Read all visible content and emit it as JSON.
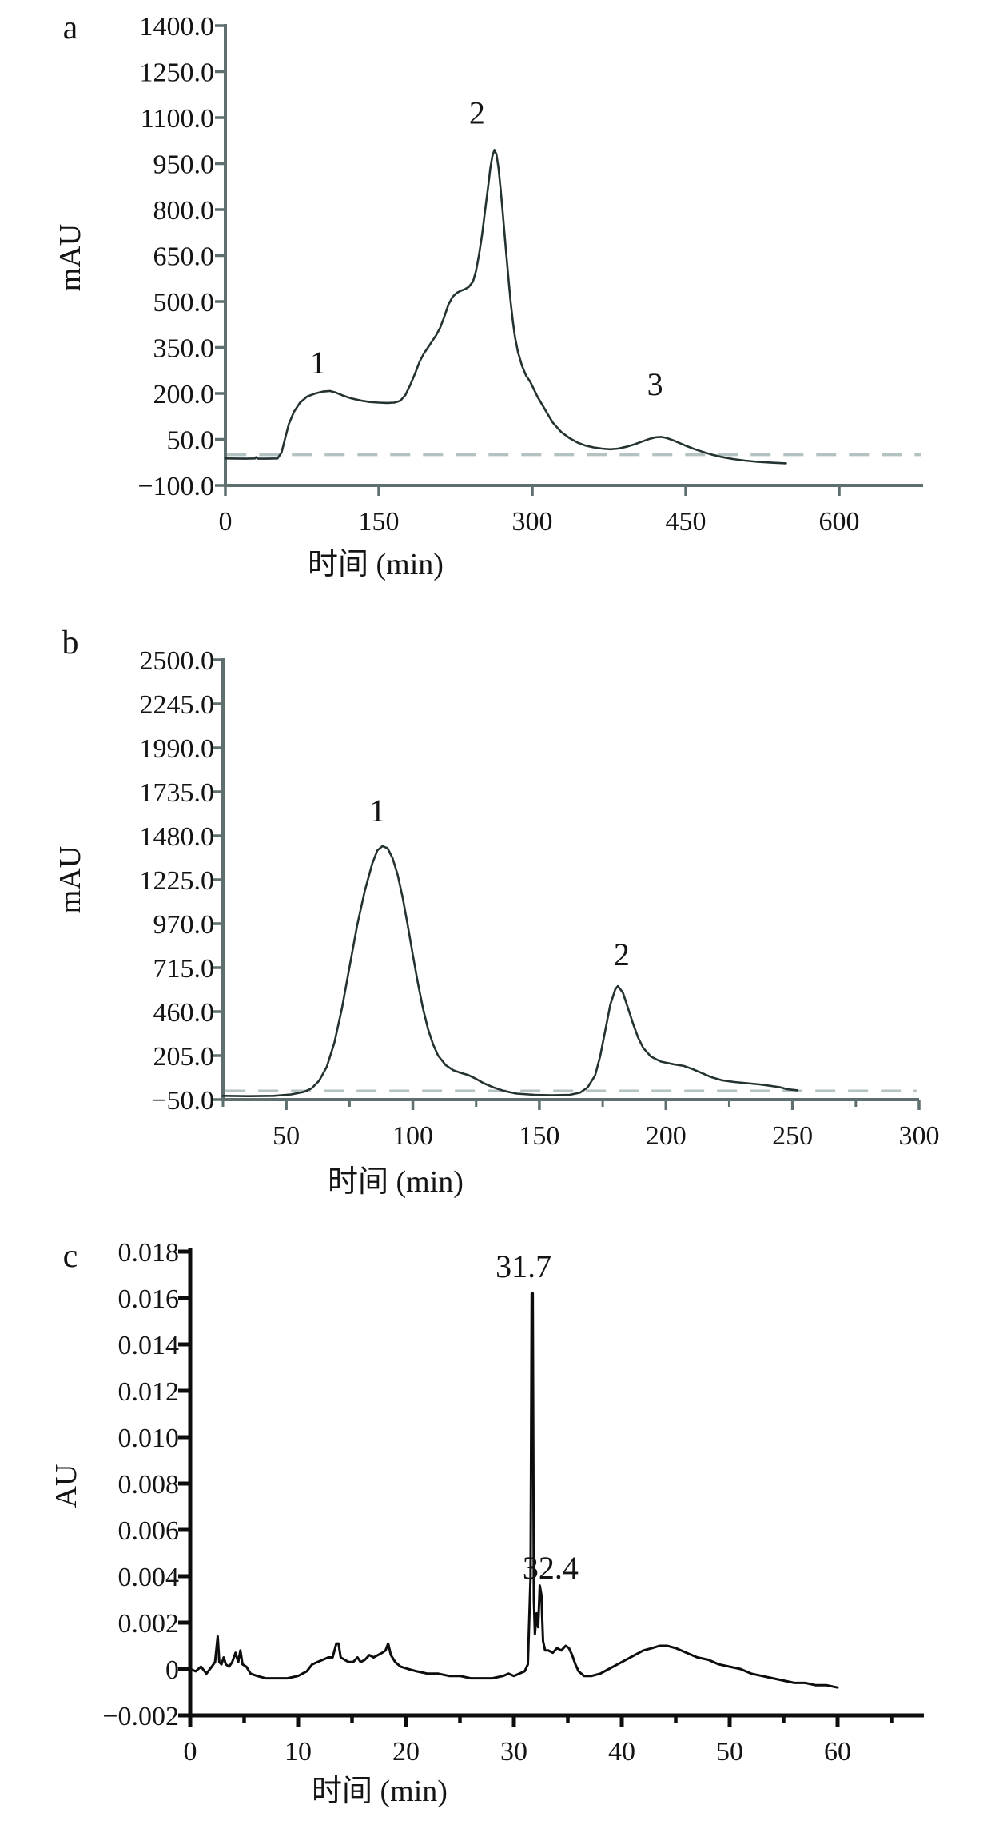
{
  "figure": {
    "title": "Chromatography figure with three panels",
    "background": "#ffffff"
  },
  "chart_data": [
    {
      "id": "a",
      "type": "line",
      "panel_label": "a",
      "ylabel": "mAU",
      "xlabel": "时间 (min)",
      "x_range": [
        0,
        682
      ],
      "y_range": [
        -100,
        1400
      ],
      "x_ticks": [
        {
          "v": 0,
          "label": "0"
        },
        {
          "v": 150,
          "label": "150"
        },
        {
          "v": 300,
          "label": "300"
        },
        {
          "v": 450,
          "label": "450"
        },
        {
          "v": 600,
          "label": "600"
        }
      ],
      "x_minor_ticks": [],
      "y_ticks": [
        {
          "v": 1400,
          "label": "1400.0"
        },
        {
          "v": 1250,
          "label": "1250.0"
        },
        {
          "v": 1100,
          "label": "1100.0"
        },
        {
          "v": 950,
          "label": "950.0"
        },
        {
          "v": 800,
          "label": "800.0"
        },
        {
          "v": 650,
          "label": "650.0"
        },
        {
          "v": 500,
          "label": "500.0"
        },
        {
          "v": 350,
          "label": "350.0"
        },
        {
          "v": 200,
          "label": "200.0"
        },
        {
          "v": 50,
          "label": "50.0"
        },
        {
          "v": -100,
          "label": "−100.0"
        }
      ],
      "baseline_dashed": {
        "y": 0,
        "x1": 1,
        "x2": 680
      },
      "series": [
        [
          0,
          -12
        ],
        [
          20,
          -13
        ],
        [
          29,
          -12
        ],
        [
          30,
          -8
        ],
        [
          32,
          -13
        ],
        [
          40,
          -13
        ],
        [
          51,
          -12
        ],
        [
          55,
          8
        ],
        [
          58,
          48
        ],
        [
          62,
          100
        ],
        [
          67,
          140
        ],
        [
          73,
          170
        ],
        [
          80,
          190
        ],
        [
          88,
          200
        ],
        [
          95,
          206
        ],
        [
          102,
          208
        ],
        [
          108,
          203
        ],
        [
          115,
          193
        ],
        [
          123,
          184
        ],
        [
          132,
          177
        ],
        [
          141,
          172
        ],
        [
          150,
          170
        ],
        [
          158,
          169
        ],
        [
          165,
          170
        ],
        [
          171,
          176
        ],
        [
          176,
          195
        ],
        [
          181,
          230
        ],
        [
          186,
          270
        ],
        [
          190,
          305
        ],
        [
          194,
          330
        ],
        [
          198,
          350
        ],
        [
          202,
          370
        ],
        [
          206,
          390
        ],
        [
          210,
          415
        ],
        [
          214,
          450
        ],
        [
          218,
          490
        ],
        [
          222,
          515
        ],
        [
          226,
          528
        ],
        [
          230,
          535
        ],
        [
          234,
          540
        ],
        [
          238,
          548
        ],
        [
          242,
          565
        ],
        [
          245,
          600
        ],
        [
          248,
          655
        ],
        [
          251,
          720
        ],
        [
          254,
          800
        ],
        [
          257,
          880
        ],
        [
          259,
          935
        ],
        [
          261,
          975
        ],
        [
          263,
          995
        ],
        [
          265,
          980
        ],
        [
          267,
          935
        ],
        [
          269,
          870
        ],
        [
          271,
          795
        ],
        [
          273,
          715
        ],
        [
          275,
          640
        ],
        [
          277,
          565
        ],
        [
          279,
          495
        ],
        [
          281,
          435
        ],
        [
          283,
          385
        ],
        [
          286,
          335
        ],
        [
          290,
          290
        ],
        [
          294,
          258
        ],
        [
          298,
          238
        ],
        [
          305,
          190
        ],
        [
          312,
          150
        ],
        [
          320,
          105
        ],
        [
          328,
          75
        ],
        [
          336,
          55
        ],
        [
          344,
          40
        ],
        [
          352,
          30
        ],
        [
          360,
          24
        ],
        [
          368,
          20
        ],
        [
          376,
          18
        ],
        [
          384,
          20
        ],
        [
          392,
          26
        ],
        [
          400,
          34
        ],
        [
          408,
          44
        ],
        [
          415,
          52
        ],
        [
          421,
          57
        ],
        [
          426,
          58
        ],
        [
          431,
          55
        ],
        [
          437,
          48
        ],
        [
          444,
          38
        ],
        [
          451,
          28
        ],
        [
          459,
          18
        ],
        [
          467,
          9
        ],
        [
          476,
          0
        ],
        [
          486,
          -8
        ],
        [
          496,
          -14
        ],
        [
          508,
          -19
        ],
        [
          520,
          -23
        ],
        [
          534,
          -26
        ],
        [
          548,
          -28
        ]
      ],
      "annotations": [
        {
          "text": "1",
          "x": 90.6,
          "y": 265
        },
        {
          "text": "2",
          "x": 246,
          "y": 1080
        },
        {
          "text": "3",
          "x": 420,
          "y": 195
        }
      ],
      "colors": {
        "axis": "#5f6f6f",
        "curve": "#243232",
        "dash": "#b5c2c2",
        "text": "#141414"
      }
    },
    {
      "id": "b",
      "type": "line",
      "panel_label": "b",
      "ylabel": "mAU",
      "xlabel": "时间 (min)",
      "x_range": [
        25,
        300
      ],
      "y_range": [
        -50,
        2500
      ],
      "x_ticks": [
        {
          "v": 50,
          "label": "50"
        },
        {
          "v": 100,
          "label": "100"
        },
        {
          "v": 150,
          "label": "150"
        },
        {
          "v": 200,
          "label": "200"
        },
        {
          "v": 250,
          "label": "250"
        },
        {
          "v": 300,
          "label": "300"
        }
      ],
      "x_minor_ticks": [
        25,
        75,
        125,
        175,
        225,
        275
      ],
      "y_ticks": [
        {
          "v": 2500,
          "label": "2500.0"
        },
        {
          "v": 2245,
          "label": "2245.0"
        },
        {
          "v": 1990,
          "label": "1990.0"
        },
        {
          "v": 1735,
          "label": "1735.0"
        },
        {
          "v": 1480,
          "label": "1480.0"
        },
        {
          "v": 1225,
          "label": "1225.0"
        },
        {
          "v": 970,
          "label": "970.0"
        },
        {
          "v": 715,
          "label": "715.0"
        },
        {
          "v": 460,
          "label": "460.0"
        },
        {
          "v": 205,
          "label": "205.0"
        },
        {
          "v": -50,
          "label": "−50.0"
        }
      ],
      "baseline_dashed": {
        "y": 0,
        "x1": 26,
        "x2": 299
      },
      "series": [
        [
          25,
          -28
        ],
        [
          35,
          -30
        ],
        [
          45,
          -28
        ],
        [
          52,
          -20
        ],
        [
          57,
          -5
        ],
        [
          60,
          15
        ],
        [
          63,
          60
        ],
        [
          66,
          140
        ],
        [
          69,
          280
        ],
        [
          72,
          480
        ],
        [
          75,
          720
        ],
        [
          78,
          960
        ],
        [
          81,
          1160
        ],
        [
          84,
          1320
        ],
        [
          86,
          1395
        ],
        [
          88,
          1420
        ],
        [
          90,
          1408
        ],
        [
          92,
          1350
        ],
        [
          94,
          1255
        ],
        [
          96,
          1120
        ],
        [
          98,
          960
        ],
        [
          100,
          790
        ],
        [
          102,
          625
        ],
        [
          104,
          480
        ],
        [
          106,
          360
        ],
        [
          108,
          270
        ],
        [
          110,
          205
        ],
        [
          113,
          150
        ],
        [
          116,
          120
        ],
        [
          119,
          105
        ],
        [
          122,
          92
        ],
        [
          125,
          70
        ],
        [
          128,
          45
        ],
        [
          132,
          20
        ],
        [
          136,
          0
        ],
        [
          141,
          -15
        ],
        [
          148,
          -22
        ],
        [
          155,
          -25
        ],
        [
          162,
          -22
        ],
        [
          166,
          -10
        ],
        [
          169,
          20
        ],
        [
          172,
          90
        ],
        [
          174,
          200
        ],
        [
          176,
          350
        ],
        [
          178,
          500
        ],
        [
          180,
          590
        ],
        [
          181,
          608
        ],
        [
          183,
          570
        ],
        [
          185,
          480
        ],
        [
          187,
          390
        ],
        [
          189,
          310
        ],
        [
          191,
          250
        ],
        [
          194,
          200
        ],
        [
          198,
          170
        ],
        [
          203,
          155
        ],
        [
          207,
          145
        ],
        [
          210,
          130
        ],
        [
          214,
          105
        ],
        [
          218,
          80
        ],
        [
          222,
          62
        ],
        [
          227,
          52
        ],
        [
          232,
          45
        ],
        [
          237,
          38
        ],
        [
          241,
          30
        ],
        [
          245,
          22
        ],
        [
          248,
          10
        ],
        [
          252,
          4
        ]
      ],
      "annotations": [
        {
          "text": "1",
          "x": 86,
          "y": 1564
        },
        {
          "text": "2",
          "x": 182.5,
          "y": 730
        }
      ],
      "colors": {
        "axis": "#5f6f6f",
        "curve": "#243232",
        "dash": "#b5c2c2",
        "text": "#141414"
      }
    },
    {
      "id": "c",
      "type": "line",
      "panel_label": "c",
      "ylabel": "AU",
      "xlabel": "时间 (min)",
      "x_range": [
        0,
        68
      ],
      "y_range": [
        -0.002,
        0.018
      ],
      "x_ticks": [
        {
          "v": 0,
          "label": "0"
        },
        {
          "v": 10,
          "label": "10"
        },
        {
          "v": 20,
          "label": "20"
        },
        {
          "v": 30,
          "label": "30"
        },
        {
          "v": 40,
          "label": "40"
        },
        {
          "v": 50,
          "label": "50"
        },
        {
          "v": 60,
          "label": "60"
        }
      ],
      "x_minor_ticks": [
        5,
        15,
        25,
        35,
        45,
        55,
        65
      ],
      "y_ticks": [
        {
          "v": 0.018,
          "label": "0.018"
        },
        {
          "v": 0.016,
          "label": "0.016"
        },
        {
          "v": 0.014,
          "label": "0.014"
        },
        {
          "v": 0.012,
          "label": "0.012"
        },
        {
          "v": 0.01,
          "label": "0.010"
        },
        {
          "v": 0.008,
          "label": "0.008"
        },
        {
          "v": 0.006,
          "label": "0.006"
        },
        {
          "v": 0.004,
          "label": "0.004"
        },
        {
          "v": 0.002,
          "label": "0.002"
        },
        {
          "v": 0,
          "label": "0"
        },
        {
          "v": -0.002,
          "label": "−0.002"
        }
      ],
      "baseline_dashed": null,
      "series": [
        [
          0,
          0
        ],
        [
          0.5,
          -0.0001
        ],
        [
          1.0,
          0.0001
        ],
        [
          1.5,
          -0.0002
        ],
        [
          2.0,
          0.0001
        ],
        [
          2.3,
          0.0003
        ],
        [
          2.55,
          0.0014
        ],
        [
          2.7,
          0.0003
        ],
        [
          2.9,
          0.0002
        ],
        [
          3.1,
          0.0005
        ],
        [
          3.3,
          0.0002
        ],
        [
          3.6,
          0.0001
        ],
        [
          3.9,
          0.0003
        ],
        [
          4.2,
          0.0007
        ],
        [
          4.45,
          0.0003
        ],
        [
          4.65,
          0.0008
        ],
        [
          4.85,
          0.0002
        ],
        [
          5.2,
          0.0001
        ],
        [
          5.6,
          -0.0002
        ],
        [
          6.2,
          -0.0003
        ],
        [
          7,
          -0.0004
        ],
        [
          8,
          -0.0004
        ],
        [
          9,
          -0.0004
        ],
        [
          10,
          -0.0003
        ],
        [
          10.8,
          -0.0001
        ],
        [
          11.3,
          0.0002
        ],
        [
          11.8,
          0.0003
        ],
        [
          12.3,
          0.0004
        ],
        [
          12.8,
          0.0005
        ],
        [
          13.2,
          0.0005
        ],
        [
          13.55,
          0.0011
        ],
        [
          13.75,
          0.0011
        ],
        [
          13.95,
          0.0005
        ],
        [
          14.3,
          0.0004
        ],
        [
          14.7,
          0.0003
        ],
        [
          15.1,
          0.0003
        ],
        [
          15.5,
          0.0005
        ],
        [
          15.8,
          0.0003
        ],
        [
          16.2,
          0.0004
        ],
        [
          16.6,
          0.0006
        ],
        [
          17.0,
          0.0005
        ],
        [
          17.4,
          0.0006
        ],
        [
          17.8,
          0.0007
        ],
        [
          18.1,
          0.0008
        ],
        [
          18.35,
          0.0011
        ],
        [
          18.6,
          0.0006
        ],
        [
          19.0,
          0.0003
        ],
        [
          19.5,
          0.0001
        ],
        [
          20.2,
          0
        ],
        [
          21,
          -0.0001
        ],
        [
          22,
          -0.0002
        ],
        [
          23,
          -0.0002
        ],
        [
          24,
          -0.0003
        ],
        [
          25,
          -0.0003
        ],
        [
          26,
          -0.0004
        ],
        [
          27,
          -0.0004
        ],
        [
          28,
          -0.0004
        ],
        [
          29,
          -0.0003
        ],
        [
          29.5,
          -0.0002
        ],
        [
          30,
          -0.0003
        ],
        [
          30.5,
          -0.0002
        ],
        [
          31.0,
          -0.0001
        ],
        [
          31.3,
          0.0002
        ],
        [
          31.55,
          0.004
        ],
        [
          31.65,
          0.0162
        ],
        [
          31.75,
          0.0162
        ],
        [
          31.85,
          0.003
        ],
        [
          31.95,
          0.0015
        ],
        [
          32.1,
          0.0024
        ],
        [
          32.25,
          0.0018
        ],
        [
          32.4,
          0.0036
        ],
        [
          32.55,
          0.0032
        ],
        [
          32.7,
          0.0012
        ],
        [
          32.9,
          0.0008
        ],
        [
          33.2,
          0.0008
        ],
        [
          33.6,
          0.0007
        ],
        [
          34.0,
          0.0009
        ],
        [
          34.4,
          0.0008
        ],
        [
          34.8,
          0.001
        ],
        [
          35.1,
          0.0009
        ],
        [
          35.4,
          0.0006
        ],
        [
          35.7,
          0.0002
        ],
        [
          36.0,
          -0.0001
        ],
        [
          36.5,
          -0.0003
        ],
        [
          37.2,
          -0.0003
        ],
        [
          38,
          -0.0002
        ],
        [
          38.8,
          0
        ],
        [
          39.6,
          0.0002
        ],
        [
          40.4,
          0.0004
        ],
        [
          41.2,
          0.0006
        ],
        [
          42,
          0.0008
        ],
        [
          42.8,
          0.0009
        ],
        [
          43.5,
          0.001
        ],
        [
          44.2,
          0.001
        ],
        [
          45,
          0.0009
        ],
        [
          46,
          0.0007
        ],
        [
          47,
          0.0005
        ],
        [
          48,
          0.0004
        ],
        [
          49,
          0.0002
        ],
        [
          50,
          0.0001
        ],
        [
          51,
          0
        ],
        [
          52,
          -0.0002
        ],
        [
          53,
          -0.0003
        ],
        [
          54,
          -0.0004
        ],
        [
          55,
          -0.0005
        ],
        [
          56,
          -0.0006
        ],
        [
          57,
          -0.0006
        ],
        [
          58,
          -0.0007
        ],
        [
          59,
          -0.0007
        ],
        [
          60,
          -0.0008
        ]
      ],
      "annotations": [
        {
          "text": "31.7",
          "x": 30.9,
          "y": 0.0169
        },
        {
          "text": "32.4",
          "x": 33.4,
          "y": 0.0039
        }
      ],
      "colors": {
        "axis": "#0d0d0d",
        "curve": "#0d0d0d",
        "dash": "#b5c2c2",
        "text": "#141414"
      }
    }
  ]
}
